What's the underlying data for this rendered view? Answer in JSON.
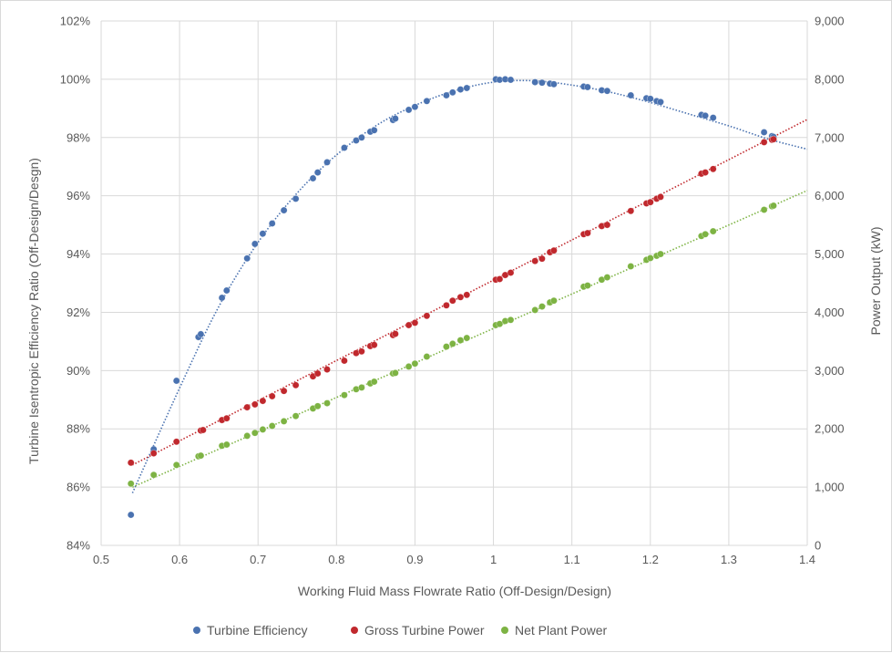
{
  "chart_data": {
    "type": "scatter",
    "title": "",
    "xlabel": "Working Fluid Mass Flowrate Ratio (Off-Design/Design)",
    "ylabel_left": "Turbine Isentropic Efficiency Ratio (Off-Design/Desgn)",
    "ylabel_right": "Power Output (kW)",
    "xlim": [
      0.5,
      1.4
    ],
    "ylim_left": [
      84,
      102
    ],
    "ylim_right": [
      0,
      9000
    ],
    "x_ticks": [
      "0.5",
      "0.6",
      "0.7",
      "0.8",
      "0.9",
      "1",
      "1.1",
      "1.2",
      "1.3",
      "1.4"
    ],
    "y_left_ticks": [
      "84%",
      "86%",
      "88%",
      "90%",
      "92%",
      "94%",
      "96%",
      "98%",
      "100%",
      "102%"
    ],
    "y_right_ticks": [
      "0",
      "1,000",
      "2,000",
      "3,000",
      "4,000",
      "5,000",
      "6,000",
      "7,000",
      "8,000",
      "9,000"
    ],
    "grid": true,
    "legend_position": "bottom",
    "series": [
      {
        "name": "Turbine Efficiency",
        "axis": "left",
        "color": "#4a72b0",
        "trendline": "polynomial",
        "trend": [
          [
            0.54,
            85.8
          ],
          [
            0.6,
            89.4
          ],
          [
            0.65,
            92.2
          ],
          [
            0.7,
            94.4
          ],
          [
            0.75,
            96.1
          ],
          [
            0.8,
            97.4
          ],
          [
            0.85,
            98.4
          ],
          [
            0.9,
            99.1
          ],
          [
            0.95,
            99.6
          ],
          [
            1.0,
            99.9
          ],
          [
            1.05,
            99.95
          ],
          [
            1.1,
            99.8
          ],
          [
            1.15,
            99.55
          ],
          [
            1.2,
            99.2
          ],
          [
            1.25,
            98.8
          ],
          [
            1.3,
            98.4
          ],
          [
            1.35,
            97.95
          ],
          [
            1.4,
            97.6
          ]
        ],
        "points": [
          [
            0.538,
            85.05
          ],
          [
            0.567,
            87.3
          ],
          [
            0.596,
            89.65
          ],
          [
            0.624,
            91.15
          ],
          [
            0.627,
            91.25
          ],
          [
            0.654,
            92.5
          ],
          [
            0.66,
            92.75
          ],
          [
            0.686,
            93.85
          ],
          [
            0.696,
            94.35
          ],
          [
            0.706,
            94.7
          ],
          [
            0.718,
            95.05
          ],
          [
            0.733,
            95.5
          ],
          [
            0.748,
            95.9
          ],
          [
            0.77,
            96.6
          ],
          [
            0.776,
            96.8
          ],
          [
            0.788,
            97.15
          ],
          [
            0.81,
            97.65
          ],
          [
            0.825,
            97.9
          ],
          [
            0.832,
            98.0
          ],
          [
            0.843,
            98.2
          ],
          [
            0.848,
            98.25
          ],
          [
            0.872,
            98.6
          ],
          [
            0.875,
            98.65
          ],
          [
            0.892,
            98.95
          ],
          [
            0.9,
            99.05
          ],
          [
            0.915,
            99.25
          ],
          [
            0.94,
            99.45
          ],
          [
            0.948,
            99.55
          ],
          [
            0.958,
            99.65
          ],
          [
            0.966,
            99.7
          ],
          [
            1.003,
            100.0
          ],
          [
            1.008,
            99.98
          ],
          [
            1.015,
            100.0
          ],
          [
            1.022,
            99.98
          ],
          [
            1.053,
            99.9
          ],
          [
            1.062,
            99.88
          ],
          [
            1.072,
            99.85
          ],
          [
            1.077,
            99.83
          ],
          [
            1.115,
            99.75
          ],
          [
            1.12,
            99.73
          ],
          [
            1.138,
            99.62
          ],
          [
            1.145,
            99.6
          ],
          [
            1.175,
            99.45
          ],
          [
            1.195,
            99.35
          ],
          [
            1.2,
            99.33
          ],
          [
            1.208,
            99.25
          ],
          [
            1.213,
            99.22
          ],
          [
            1.265,
            98.78
          ],
          [
            1.27,
            98.75
          ],
          [
            1.28,
            98.68
          ],
          [
            1.345,
            98.18
          ],
          [
            1.355,
            98.05
          ],
          [
            1.357,
            98.02
          ]
        ]
      },
      {
        "name": "Gross Turbine Power",
        "axis": "right",
        "color": "#c0282d",
        "trendline": "linear",
        "trend": [
          [
            0.54,
            1380
          ],
          [
            1.4,
            7310
          ]
        ],
        "points": [
          [
            0.538,
            1420
          ],
          [
            0.567,
            1580
          ],
          [
            0.596,
            1780
          ],
          [
            0.627,
            1970
          ],
          [
            0.63,
            1980
          ],
          [
            0.654,
            2150
          ],
          [
            0.66,
            2180
          ],
          [
            0.686,
            2370
          ],
          [
            0.696,
            2420
          ],
          [
            0.706,
            2480
          ],
          [
            0.718,
            2560
          ],
          [
            0.733,
            2650
          ],
          [
            0.748,
            2750
          ],
          [
            0.77,
            2900
          ],
          [
            0.776,
            2950
          ],
          [
            0.788,
            3020
          ],
          [
            0.81,
            3170
          ],
          [
            0.825,
            3300
          ],
          [
            0.832,
            3330
          ],
          [
            0.843,
            3420
          ],
          [
            0.848,
            3440
          ],
          [
            0.872,
            3610
          ],
          [
            0.875,
            3630
          ],
          [
            0.892,
            3780
          ],
          [
            0.9,
            3820
          ],
          [
            0.915,
            3940
          ],
          [
            0.94,
            4120
          ],
          [
            0.948,
            4200
          ],
          [
            0.958,
            4260
          ],
          [
            0.966,
            4300
          ],
          [
            1.003,
            4560
          ],
          [
            1.008,
            4570
          ],
          [
            1.015,
            4640
          ],
          [
            1.022,
            4680
          ],
          [
            1.053,
            4880
          ],
          [
            1.062,
            4920
          ],
          [
            1.072,
            5030
          ],
          [
            1.077,
            5060
          ],
          [
            1.115,
            5340
          ],
          [
            1.12,
            5360
          ],
          [
            1.138,
            5480
          ],
          [
            1.145,
            5500
          ],
          [
            1.175,
            5740
          ],
          [
            1.195,
            5870
          ],
          [
            1.2,
            5890
          ],
          [
            1.208,
            5950
          ],
          [
            1.213,
            5980
          ],
          [
            1.265,
            6380
          ],
          [
            1.27,
            6400
          ],
          [
            1.28,
            6460
          ],
          [
            1.345,
            6920
          ],
          [
            1.355,
            6960
          ],
          [
            1.357,
            6970
          ]
        ]
      },
      {
        "name": "Net Plant Power",
        "axis": "right",
        "color": "#7db343",
        "trendline": "linear",
        "trend": [
          [
            0.54,
            1000
          ],
          [
            1.4,
            6090
          ]
        ],
        "points": [
          [
            0.538,
            1060
          ],
          [
            0.567,
            1210
          ],
          [
            0.596,
            1380
          ],
          [
            0.624,
            1530
          ],
          [
            0.627,
            1540
          ],
          [
            0.654,
            1710
          ],
          [
            0.66,
            1730
          ],
          [
            0.686,
            1880
          ],
          [
            0.696,
            1930
          ],
          [
            0.706,
            1990
          ],
          [
            0.718,
            2050
          ],
          [
            0.733,
            2130
          ],
          [
            0.748,
            2220
          ],
          [
            0.77,
            2350
          ],
          [
            0.776,
            2390
          ],
          [
            0.788,
            2440
          ],
          [
            0.81,
            2580
          ],
          [
            0.825,
            2680
          ],
          [
            0.832,
            2710
          ],
          [
            0.843,
            2780
          ],
          [
            0.848,
            2810
          ],
          [
            0.872,
            2950
          ],
          [
            0.875,
            2960
          ],
          [
            0.892,
            3070
          ],
          [
            0.9,
            3120
          ],
          [
            0.915,
            3240
          ],
          [
            0.94,
            3410
          ],
          [
            0.948,
            3460
          ],
          [
            0.958,
            3520
          ],
          [
            0.966,
            3560
          ],
          [
            1.003,
            3780
          ],
          [
            1.008,
            3800
          ],
          [
            1.015,
            3850
          ],
          [
            1.022,
            3870
          ],
          [
            1.053,
            4040
          ],
          [
            1.062,
            4100
          ],
          [
            1.072,
            4170
          ],
          [
            1.077,
            4200
          ],
          [
            1.115,
            4440
          ],
          [
            1.12,
            4460
          ],
          [
            1.138,
            4560
          ],
          [
            1.145,
            4600
          ],
          [
            1.175,
            4790
          ],
          [
            1.195,
            4900
          ],
          [
            1.2,
            4930
          ],
          [
            1.208,
            4970
          ],
          [
            1.213,
            5000
          ],
          [
            1.265,
            5310
          ],
          [
            1.27,
            5340
          ],
          [
            1.28,
            5390
          ],
          [
            1.345,
            5760
          ],
          [
            1.355,
            5820
          ],
          [
            1.357,
            5830
          ]
        ]
      }
    ]
  }
}
